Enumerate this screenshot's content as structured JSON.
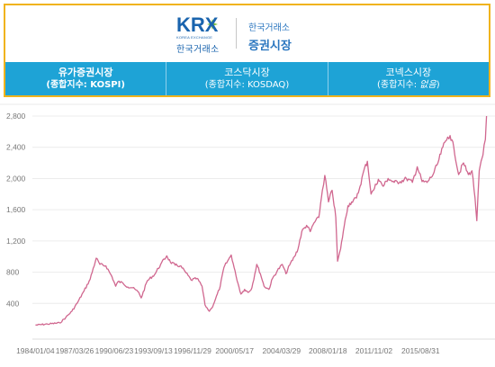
{
  "header": {
    "krx_logo": "KRX",
    "krx_small": "KOREA EXCHANGE",
    "krx_korean": "한국거래소",
    "org_name": "한국거래소",
    "market_title": "증권시장"
  },
  "tabs": [
    {
      "name": "유가증권시장",
      "sub_prefix": "(종합지수: ",
      "sub_value": "KOSPI",
      "sub_suffix": ")",
      "italic": false,
      "bold": true
    },
    {
      "name": "코스닥시장",
      "sub_prefix": "(종합지수: ",
      "sub_value": "KOSDAQ",
      "sub_suffix": ")",
      "italic": false,
      "bold": false
    },
    {
      "name": "코넥스시장",
      "sub_prefix": "(종합지수: ",
      "sub_value": "없음",
      "sub_suffix": ")",
      "italic": true,
      "bold": false
    }
  ],
  "colors": {
    "header_border": "#f0b31c",
    "tab_bg": "#1ea3d6",
    "line": "#d0678f",
    "brand_blue": "#1a64ae"
  },
  "chart_data": {
    "type": "line",
    "title": "",
    "xlabel": "",
    "ylabel": "",
    "y_ticks": [
      "2,800",
      "2,400",
      "2,000",
      "1,600",
      "1,200",
      "800",
      "400"
    ],
    "y_tick_values": [
      2800,
      2400,
      2000,
      1600,
      1200,
      800,
      400
    ],
    "x_ticks": [
      "1984/01/04",
      "1987/03/26",
      "1990/06/23",
      "1993/09/13",
      "1996/11/29",
      "2000/05/17",
      "2004/03/29",
      "2008/01/18",
      "2011/11/02",
      "2015/08/31"
    ],
    "x_tick_years": [
      1984.0,
      1987.23,
      1990.48,
      1993.7,
      1996.92,
      2000.38,
      2004.24,
      2008.05,
      2011.84,
      2015.67
    ],
    "ylim": [
      0,
      2950
    ],
    "xlim": [
      1983.9,
      2021.2
    ],
    "grid": true,
    "series": [
      {
        "x": [
          1984.0,
          1985.0,
          1986.0,
          1986.5,
          1987.0,
          1987.5,
          1988.0,
          1988.5,
          1989.0,
          1989.3,
          1989.8,
          1990.3,
          1990.6,
          1990.8,
          1991.2,
          1991.6,
          1992.0,
          1992.5,
          1992.7,
          1993.2,
          1993.8,
          1994.3,
          1994.8,
          1995.1,
          1995.5,
          1995.9,
          1996.3,
          1996.8,
          1997.3,
          1997.7,
          1997.95,
          1998.3,
          1998.5,
          1998.8,
          1999.2,
          1999.5,
          1999.8,
          2000.1,
          2000.5,
          2000.9,
          2001.2,
          2001.5,
          2001.8,
          2002.2,
          2002.5,
          2002.8,
          2003.2,
          2003.5,
          2003.9,
          2004.3,
          2004.6,
          2004.9,
          2005.3,
          2005.6,
          2005.9,
          2006.3,
          2006.6,
          2006.9,
          2007.3,
          2007.6,
          2007.8,
          2008.1,
          2008.4,
          2008.7,
          2008.85,
          2009.1,
          2009.4,
          2009.7,
          2010.0,
          2010.4,
          2010.7,
          2011.0,
          2011.3,
          2011.6,
          2011.8,
          2012.2,
          2012.6,
          2013.0,
          2013.5,
          2014.0,
          2014.5,
          2015.0,
          2015.4,
          2015.8,
          2016.2,
          2016.7,
          2017.1,
          2017.5,
          2017.9,
          2018.1,
          2018.4,
          2018.8,
          2019.2,
          2019.6,
          2019.9,
          2020.15,
          2020.3,
          2020.5,
          2020.8,
          2021.0,
          2021.1
        ],
        "y": [
          122,
          135,
          150,
          220,
          300,
          420,
          560,
          710,
          980,
          900,
          880,
          740,
          620,
          680,
          660,
          610,
          600,
          540,
          470,
          690,
          770,
          900,
          1010,
          930,
          890,
          880,
          810,
          700,
          720,
          620,
          380,
          300,
          340,
          450,
          620,
          860,
          940,
          1020,
          750,
          520,
          580,
          540,
          600,
          900,
          780,
          620,
          580,
          720,
          820,
          900,
          780,
          890,
          1000,
          1100,
          1320,
          1400,
          1320,
          1430,
          1500,
          1850,
          2040,
          1700,
          1850,
          1500,
          940,
          1100,
          1400,
          1650,
          1700,
          1750,
          1900,
          2100,
          2220,
          1800,
          1850,
          1990,
          1900,
          2000,
          1950,
          1960,
          2000,
          1950,
          2150,
          1960,
          1950,
          2050,
          2200,
          2400,
          2530,
          2550,
          2400,
          2050,
          2200,
          2050,
          2100,
          1750,
          1460,
          2100,
          2300,
          2500,
          2800
        ]
      }
    ]
  }
}
